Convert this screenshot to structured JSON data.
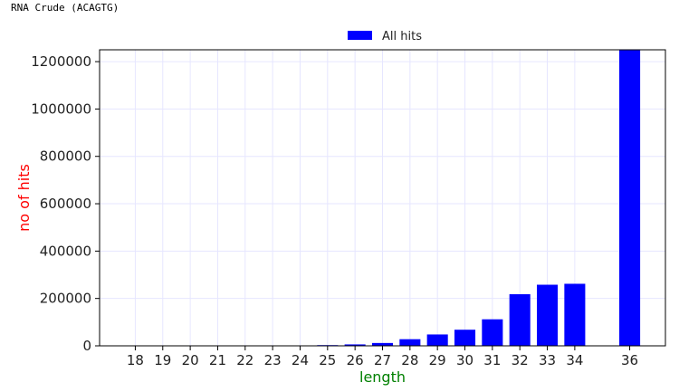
{
  "page": {
    "title": "RNA Crude (ACAGTG)"
  },
  "colors": {
    "bar": "#0000ff",
    "grid": "#e6e6ff",
    "xlabel": "#008000",
    "ylabel": "#ff0000",
    "frame": "#000000"
  },
  "chart_data": {
    "type": "bar",
    "title": "",
    "xlabel": "length",
    "ylabel": "no of hits",
    "ylim": [
      0,
      1250000
    ],
    "yticks": [
      0,
      200000,
      400000,
      600000,
      800000,
      1000000,
      1200000
    ],
    "ytick_labels": [
      "0",
      "200000",
      "400000",
      "600000",
      "800000",
      "1000000",
      "1200000"
    ],
    "grid": true,
    "legend_position": "top-center",
    "categories": [
      "18",
      "19",
      "20",
      "21",
      "22",
      "23",
      "24",
      "25",
      "26",
      "27",
      "28",
      "29",
      "30",
      "31",
      "32",
      "33",
      "34",
      "36"
    ],
    "x": [
      18,
      19,
      20,
      21,
      22,
      23,
      24,
      25,
      26,
      27,
      28,
      29,
      30,
      31,
      32,
      33,
      34,
      36
    ],
    "series": [
      {
        "name": "All hits",
        "values": [
          0,
          0,
          0,
          0,
          0,
          0,
          0,
          3000,
          6000,
          12000,
          28000,
          48000,
          68000,
          112000,
          218000,
          258000,
          262000,
          1250000
        ]
      }
    ]
  }
}
